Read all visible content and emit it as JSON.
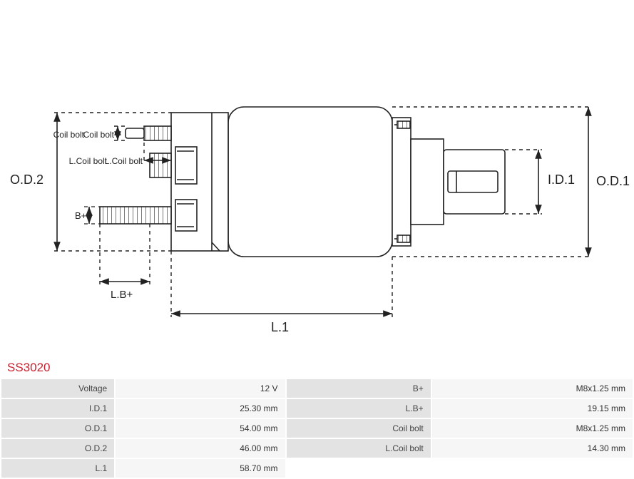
{
  "part_code": "SS3020",
  "diagram": {
    "type": "engineering-diagram",
    "stroke_color": "#222222",
    "stroke_width": 1.6,
    "dash_pattern": "4 4",
    "text_color": "#222222",
    "label_fontsize": 15,
    "small_label_fontsize": 12,
    "labels": {
      "od2": "O.D.2",
      "od1": "O.D.1",
      "id1": "I.D.1",
      "l1": "L.1",
      "lbplus": "L.B+",
      "bplus": "B+",
      "coil_bolt": "Coil bolt",
      "l_coil_bolt": "L.Coil bolt"
    }
  },
  "table": {
    "background_color": "#ededed",
    "label_bg": "#e3e3e3",
    "value_bg": "#f6f6f6",
    "text_color": "#333333",
    "fontsize": 12,
    "rows": [
      {
        "l1": "Voltage",
        "v1": "12 V",
        "l2": "B+",
        "v2": "M8x1.25 mm"
      },
      {
        "l1": "I.D.1",
        "v1": "25.30 mm",
        "l2": "L.B+",
        "v2": "19.15 mm"
      },
      {
        "l1": "O.D.1",
        "v1": "54.00 mm",
        "l2": "Coil bolt",
        "v2": "M8x1.25 mm"
      },
      {
        "l1": "O.D.2",
        "v1": "46.00 mm",
        "l2": "L.Coil bolt",
        "v2": "14.30 mm"
      },
      {
        "l1": "L.1",
        "v1": "58.70 mm",
        "l2": "",
        "v2": ""
      }
    ]
  }
}
